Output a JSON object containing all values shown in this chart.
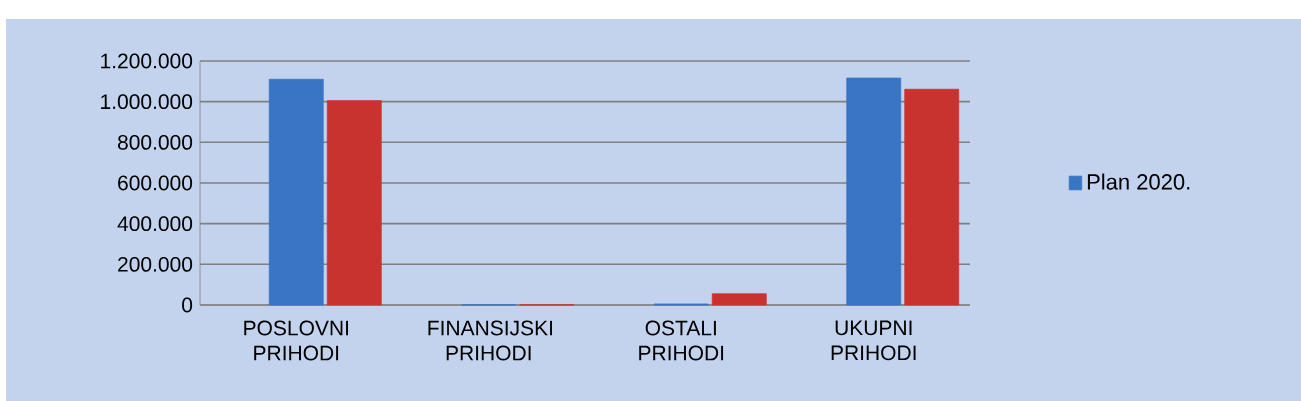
{
  "chart_data": {
    "type": "bar",
    "categories": [
      "POSLOVNI PRIHODI",
      "FINANSIJSKI PRIHODI",
      "OSTALI PRIHODI",
      "UKUPNI PRIHODI"
    ],
    "series": [
      {
        "name": "Plan 2020.",
        "color": "#3a75c4",
        "values": [
          1110000,
          1000,
          5000,
          1116000
        ]
      },
      {
        "color": "#c9332f",
        "values": [
          1005000,
          1000,
          55000,
          1061000
        ]
      }
    ],
    "ylim": [
      0,
      1200000
    ],
    "yticks": [
      0,
      {
        "value": 200000,
        "label": "200.000"
      },
      {
        "value": 400000,
        "label": "400.000"
      },
      {
        "value": 600000,
        "label": "600.000"
      },
      {
        "value": 800000,
        "label": "800.000"
      },
      {
        "value": 1000000,
        "label": "1.000.000"
      },
      {
        "value": 1200000,
        "label": "1.200.000"
      }
    ],
    "grid": "y",
    "legend": "right"
  }
}
